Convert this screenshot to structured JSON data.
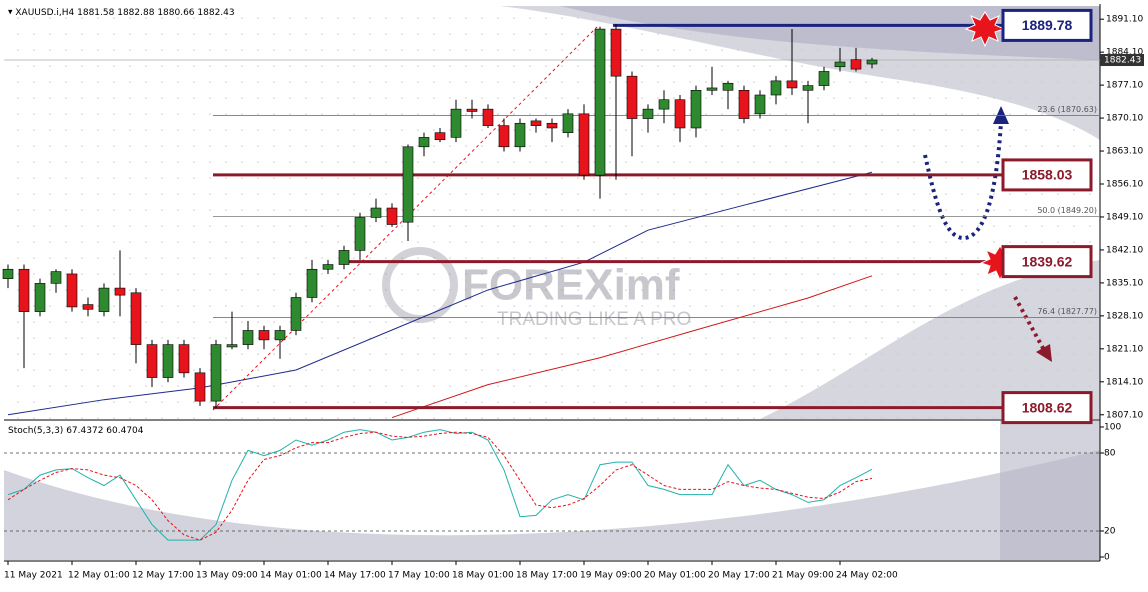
{
  "chart_data": [
    {
      "type": "candlestick",
      "symbol": "XAUUSD.i,H4",
      "categories": [
        "11 May 2021",
        null,
        null,
        null,
        "12 May 01:00",
        null,
        null,
        null,
        "12 May 17:00",
        null,
        null,
        null,
        "13 May 09:00",
        null,
        null,
        null,
        "14 May 01:00",
        null,
        null,
        null,
        "14 May 17:00",
        null,
        null,
        null,
        "17 May 10:00",
        null,
        null,
        null,
        "18 May 01:00",
        null,
        null,
        null,
        "18 May 17:00",
        null,
        null,
        null,
        "19 May 09:00",
        null,
        null,
        null,
        "20 May 01:00",
        null,
        null,
        null,
        "20 May 17:00",
        null,
        null,
        null,
        "21 May 09:00",
        null,
        null,
        null,
        "24 May 02:00",
        null,
        null
      ],
      "open": [
        1836,
        1838,
        1829,
        1835,
        1837,
        1830.5,
        1829,
        1834,
        1833,
        1822,
        1815,
        1822,
        1816,
        1810,
        1821.5,
        1822,
        1825,
        1823,
        1825,
        1832,
        1838,
        1839,
        1842,
        1849,
        1851,
        1848,
        1864,
        1867,
        1866,
        1872,
        1872,
        1868.5,
        1864,
        1869.5,
        1869,
        1867,
        1871,
        1858,
        1889,
        1879,
        1870,
        1872,
        1874,
        1868,
        1876,
        1876,
        1876,
        1871,
        1875,
        1878,
        1876,
        1877,
        1881,
        1882.5,
        1881.58
      ],
      "high": [
        1839,
        1839,
        1836,
        1838,
        1838,
        1832,
        1835,
        1842,
        1834,
        1823,
        1823,
        1823,
        1817,
        1823,
        1829,
        1827,
        1826,
        1826,
        1833,
        1840,
        1840,
        1843,
        1850,
        1853,
        1852,
        1864.5,
        1867,
        1868,
        1874,
        1874,
        1873,
        1870,
        1870,
        1870,
        1870,
        1872,
        1873,
        1889.5,
        1890,
        1880,
        1873,
        1876,
        1875,
        1877,
        1881,
        1878,
        1877,
        1876,
        1879,
        1889,
        1878,
        1881,
        1885,
        1885,
        1882.88
      ],
      "low": [
        1834,
        1817,
        1828,
        1833,
        1829,
        1828,
        1828,
        1828,
        1818,
        1813,
        1814,
        1815,
        1809,
        1808.5,
        1821,
        1821,
        1821,
        1819,
        1824,
        1831,
        1837,
        1838,
        1840,
        1848,
        1847,
        1844,
        1862,
        1865,
        1865,
        1870,
        1868,
        1863,
        1863,
        1867,
        1865,
        1866,
        1857,
        1853,
        1857,
        1862,
        1867,
        1869,
        1865,
        1866,
        1875,
        1872,
        1869,
        1870,
        1873,
        1875,
        1869,
        1876,
        1880,
        1880,
        1880.66
      ],
      "close": [
        1838,
        1829,
        1835,
        1837.5,
        1830,
        1829.5,
        1834,
        1832.5,
        1822,
        1815,
        1822,
        1816,
        1810,
        1822,
        1822,
        1825,
        1823,
        1825,
        1832,
        1838,
        1839,
        1842,
        1849,
        1851,
        1847.5,
        1864,
        1866,
        1865.5,
        1872,
        1871.5,
        1868.5,
        1864,
        1869,
        1868.5,
        1868,
        1871,
        1858,
        1889,
        1879,
        1870,
        1872,
        1874,
        1868,
        1876,
        1876.5,
        1877.5,
        1870,
        1875,
        1878,
        1876.5,
        1877,
        1880,
        1882,
        1880.5,
        1882.43
      ],
      "up_color": "#2f8a2f",
      "down_color": "#e8141c",
      "ylim": [
        1806.2,
        1893.9
      ],
      "yticks": [
        {
          "value": 1891.1,
          "label": "1891.10"
        },
        {
          "value": 1884.1,
          "label": "1884.10"
        },
        {
          "value": 1877.1,
          "label": "1877.10"
        },
        {
          "value": 1870.1,
          "label": "1870.10"
        },
        {
          "value": 1863.1,
          "label": "1863.10"
        },
        {
          "value": 1856.1,
          "label": "1856.10"
        },
        {
          "value": 1849.1,
          "label": "1849.10"
        },
        {
          "value": 1842.1,
          "label": "1842.10"
        },
        {
          "value": 1835.1,
          "label": "1835.10"
        },
        {
          "value": 1828.1,
          "label": "1828.10"
        },
        {
          "value": 1821.1,
          "label": "1821.10"
        },
        {
          "value": 1814.1,
          "label": "1814.10"
        },
        {
          "value": 1807.1,
          "label": "1807.10"
        }
      ],
      "moving_averages": [
        {
          "color": "#1c2a8c",
          "x": [
            0,
            6,
            12,
            18,
            24,
            30,
            36,
            40,
            46,
            54
          ],
          "values": [
            1807.1,
            1810.3,
            1812.8,
            1816.6,
            1825.1,
            1833.6,
            1839.5,
            1846.3,
            1851.6,
            1858.6
          ]
        },
        {
          "color": "#d01818",
          "x": [
            24,
            30,
            37,
            43,
            50,
            54
          ],
          "values": [
            1806.5,
            1813.5,
            1819.2,
            1825.1,
            1831.9,
            1836.6
          ]
        }
      ],
      "fib_levels": [
        {
          "value": 1870.63,
          "label": "23.6 (1870.63)"
        },
        {
          "value": 1849.2,
          "label": "50.0 (1849.20)"
        },
        {
          "value": 1827.77,
          "label": "76.4 (1827.77)"
        }
      ],
      "key_levels": [
        {
          "value": 1889.78,
          "color": "#1a237e"
        },
        {
          "value": 1858.03,
          "color": "#8b1a2b"
        },
        {
          "value": 1839.62,
          "color": "#8b1a2b"
        },
        {
          "value": 1808.62,
          "color": "#8b1a2b"
        }
      ],
      "watermark": {
        "brand": "FOREXimf",
        "tagline": "TRADING LIKE A PRO"
      }
    },
    {
      "type": "stochastic",
      "title": "Stoch(5,3,3)",
      "ylim": [
        0,
        100
      ],
      "yticks": [
        100,
        80,
        20,
        0
      ],
      "levels": [
        80,
        20
      ],
      "series": [
        {
          "color": "#20b2aa",
          "dash": false,
          "values": [
            48,
            52,
            63,
            67,
            68,
            61,
            55,
            63,
            44,
            25,
            13,
            13,
            13,
            25,
            59,
            82,
            78,
            82,
            90,
            86,
            90,
            96,
            98,
            96,
            90,
            92,
            96,
            98,
            95,
            96,
            90,
            67,
            31,
            32,
            44,
            48,
            44,
            71,
            73,
            73,
            55,
            52,
            48,
            48,
            48,
            71,
            55,
            59,
            52,
            48,
            42,
            44,
            55,
            61,
            67.4372
          ]
        },
        {
          "color": "#e8141c",
          "dash": true,
          "values": [
            44,
            52,
            59,
            65,
            68,
            67,
            63,
            61,
            55,
            44,
            28,
            17,
            13,
            19,
            36,
            59,
            75,
            78,
            84,
            88,
            88,
            92,
            95,
            96,
            93,
            92,
            93,
            95,
            96,
            95,
            92,
            78,
            59,
            40,
            38,
            40,
            45,
            55,
            67,
            71,
            63,
            55,
            52,
            52,
            52,
            58,
            55,
            53,
            52,
            49,
            46,
            45,
            50,
            58,
            60.4704
          ]
        }
      ]
    }
  ]
}
